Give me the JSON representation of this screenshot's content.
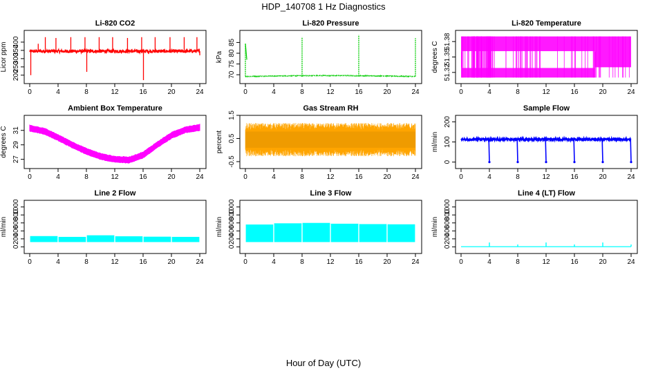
{
  "title": "HDP_140708  1 Hz Diagnostics",
  "x_caption": "Hour of Day (UTC)",
  "chart_data": [
    {
      "type": "line",
      "title": "Li-820 CO2",
      "ylabel": "Licor ppm",
      "color": "#ff0000",
      "style": "noisy_spikes",
      "xlim": [
        0,
        24
      ],
      "ylim": [
        170,
        450
      ],
      "xticks": [
        0,
        4,
        8,
        12,
        16,
        20,
        24
      ],
      "yticks": [
        200,
        250,
        300,
        350,
        400
      ],
      "baseline": 345,
      "noise": 10,
      "spikes": [
        {
          "x": 0.15,
          "y": 200
        },
        {
          "x": 1.2,
          "y": 390
        },
        {
          "x": 2.2,
          "y": 430
        },
        {
          "x": 3.7,
          "y": 425
        },
        {
          "x": 5.8,
          "y": 430
        },
        {
          "x": 7.8,
          "y": 430
        },
        {
          "x": 8.05,
          "y": 220
        },
        {
          "x": 9.8,
          "y": 430
        },
        {
          "x": 11.7,
          "y": 430
        },
        {
          "x": 13.8,
          "y": 425
        },
        {
          "x": 15.8,
          "y": 430
        },
        {
          "x": 16.05,
          "y": 170
        },
        {
          "x": 17.7,
          "y": 430
        },
        {
          "x": 19.8,
          "y": 430
        },
        {
          "x": 21.8,
          "y": 430
        },
        {
          "x": 23.6,
          "y": 430
        },
        {
          "x": 24.0,
          "y": 320
        }
      ]
    },
    {
      "type": "line",
      "title": "Li-820 Pressure",
      "ylabel": "kPa",
      "color": "#00cc00",
      "style": "pressure",
      "xlim": [
        0,
        24
      ],
      "ylim": [
        67.5,
        89
      ],
      "xticks": [
        0,
        4,
        8,
        12,
        16,
        20,
        24
      ],
      "yticks": [
        70,
        75,
        80,
        85
      ],
      "baseline": 69.2,
      "spikes": [
        {
          "x": 0.0,
          "y": 84.5
        },
        {
          "x": 8.0,
          "y": 87.5
        },
        {
          "x": 16.0,
          "y": 88.5
        },
        {
          "x": 24.0,
          "y": 87.0
        }
      ]
    },
    {
      "type": "line",
      "title": "Li-820 Temperature",
      "ylabel": "degrees C",
      "color": "#ff00ff",
      "style": "quantized",
      "xlim": [
        0,
        24
      ],
      "ylim": [
        51.305,
        51.395
      ],
      "xticks": [
        0,
        4,
        8,
        12,
        16,
        20,
        24
      ],
      "yticks": [
        51.32,
        51.35,
        51.38
      ],
      "levels": [
        51.31,
        51.33,
        51.36,
        51.39
      ]
    },
    {
      "type": "line",
      "title": "Ambient Box Temperature",
      "ylabel": "degrees C",
      "color": "#ff00ff",
      "style": "smooth_band",
      "xlim": [
        0,
        24
      ],
      "ylim": [
        26.2,
        32.6
      ],
      "xticks": [
        0,
        4,
        8,
        12,
        16,
        20,
        24
      ],
      "yticks": [
        27,
        29,
        31
      ],
      "x": [
        0,
        2,
        4,
        6,
        8,
        10,
        12,
        14,
        16,
        18,
        20,
        22,
        24
      ],
      "y": [
        31.3,
        30.9,
        30.0,
        29.0,
        28.1,
        27.4,
        27.0,
        26.9,
        27.6,
        29.0,
        30.3,
        31.1,
        31.4
      ]
    },
    {
      "type": "line",
      "title": "Gas Stream RH",
      "ylabel": "percent",
      "color": "#ffa500",
      "style": "noise_band",
      "xlim": [
        0,
        24
      ],
      "ylim": [
        -0.65,
        1.35
      ],
      "xticks": [
        0,
        4,
        8,
        12,
        16,
        20,
        24
      ],
      "yticks": [
        -0.5,
        0.5,
        1.5
      ],
      "center": 0.45,
      "spread": 0.6
    },
    {
      "type": "line",
      "title": "Sample Flow",
      "ylabel": "ml/min",
      "color": "#0000ff",
      "style": "flow_dips",
      "xlim": [
        0,
        24
      ],
      "ylim": [
        -15,
        215
      ],
      "xticks": [
        0,
        4,
        8,
        12,
        16,
        20,
        24
      ],
      "yticks": [
        0,
        100,
        200
      ],
      "baseline": 113,
      "dips": [
        4.0,
        8.0,
        12.0,
        16.0,
        20.0,
        24.0
      ]
    },
    {
      "type": "line",
      "title": "Line 2 Flow",
      "ylabel": "ml/min",
      "color": "#00ffff",
      "style": "flow_band",
      "xlim": [
        0,
        24
      ],
      "ylim": [
        -80,
        1080
      ],
      "xticks": [
        0,
        4,
        8,
        12,
        16,
        20,
        24
      ],
      "yticks": [
        0,
        200,
        400,
        600,
        800,
        1000
      ],
      "low": 120,
      "highs": [
        270,
        250,
        290,
        265,
        255,
        250
      ],
      "breaks": [
        4.0,
        8.0,
        12.0,
        16.0,
        20.0
      ]
    },
    {
      "type": "line",
      "title": "Line 3 Flow",
      "ylabel": "ml/min",
      "color": "#00ffff",
      "style": "flow_band",
      "xlim": [
        0,
        24
      ],
      "ylim": [
        -80,
        1080
      ],
      "xticks": [
        0,
        4,
        8,
        12,
        16,
        20,
        24
      ],
      "yticks": [
        0,
        200,
        400,
        600,
        800,
        1000
      ],
      "low": 120,
      "highs": [
        560,
        590,
        600,
        580,
        570,
        565
      ],
      "breaks": [
        4.0,
        8.0,
        12.0,
        16.0,
        20.0
      ]
    },
    {
      "type": "line",
      "title": "Line 4 (LT) Flow",
      "ylabel": "ml/min",
      "color": "#00ffff",
      "style": "flat_spikes",
      "xlim": [
        0,
        24
      ],
      "ylim": [
        -80,
        1080
      ],
      "xticks": [
        0,
        4,
        8,
        12,
        16,
        20,
        24
      ],
      "yticks": [
        0,
        200,
        400,
        600,
        800,
        1000
      ],
      "baseline": 5,
      "spikes": [
        {
          "x": 4.0,
          "y": 110
        },
        {
          "x": 8.0,
          "y": 60
        },
        {
          "x": 12.0,
          "y": 110
        },
        {
          "x": 16.0,
          "y": 60
        },
        {
          "x": 20.0,
          "y": 110
        },
        {
          "x": 24.0,
          "y": 60
        }
      ]
    }
  ]
}
